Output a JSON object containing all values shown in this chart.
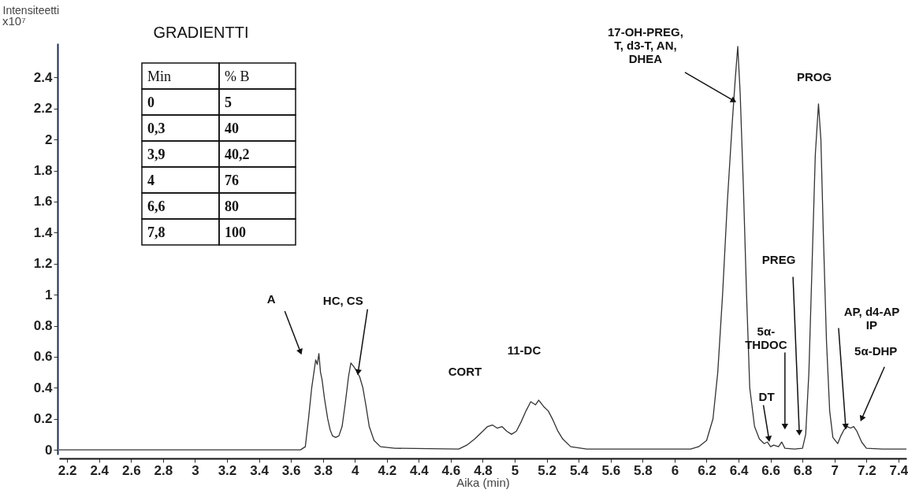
{
  "chart_data": {
    "type": "line",
    "xlabel": "Aika (min)",
    "ylabel": "Intensiteetti",
    "xlim": [
      2.15,
      7.45
    ],
    "ylim": [
      -0.03,
      2.62
    ],
    "xticks": [
      2.2,
      2.4,
      2.6,
      2.8,
      3,
      3.2,
      3.4,
      3.6,
      3.8,
      4,
      4.2,
      4.4,
      4.6,
      4.8,
      5,
      5.2,
      5.4,
      5.6,
      5.8,
      6,
      6.2,
      6.4,
      6.6,
      6.8,
      7,
      7.2,
      7.4
    ],
    "yticks": [
      0,
      0.2,
      0.4,
      0.6,
      0.8,
      1,
      1.2,
      1.4,
      1.6,
      1.8,
      2,
      2.2,
      2.4
    ],
    "series": [
      {
        "color": "#333333",
        "x": [
          2.15,
          3.66,
          3.69,
          3.71,
          3.73,
          3.755,
          3.765,
          3.775,
          3.785,
          3.795,
          3.81,
          3.83,
          3.845,
          3.86,
          3.88,
          3.9,
          3.92,
          3.94,
          3.96,
          3.975,
          3.99,
          4.01,
          4.03,
          4.05,
          4.07,
          4.09,
          4.12,
          4.16,
          4.25,
          4.65,
          4.7,
          4.75,
          4.8,
          4.83,
          4.86,
          4.89,
          4.92,
          4.95,
          4.98,
          5.01,
          5.04,
          5.07,
          5.1,
          5.13,
          5.15,
          5.18,
          5.21,
          5.24,
          5.27,
          5.3,
          5.35,
          5.45,
          6.1,
          6.15,
          6.2,
          6.24,
          6.27,
          6.3,
          6.33,
          6.36,
          6.38,
          6.395,
          6.41,
          6.43,
          6.45,
          6.47,
          6.5,
          6.53,
          6.56,
          6.58,
          6.6,
          6.62,
          6.65,
          6.67,
          6.69,
          6.75,
          6.8,
          6.82,
          6.84,
          6.86,
          6.88,
          6.9,
          6.915,
          6.93,
          6.95,
          6.97,
          6.99,
          7.02,
          7.04,
          7.06,
          7.08,
          7.1,
          7.12,
          7.14,
          7.17,
          7.2,
          7.3,
          7.45
        ],
        "values": [
          0,
          0,
          0.02,
          0.2,
          0.4,
          0.58,
          0.55,
          0.62,
          0.5,
          0.45,
          0.33,
          0.2,
          0.13,
          0.09,
          0.08,
          0.09,
          0.15,
          0.3,
          0.47,
          0.56,
          0.54,
          0.51,
          0.47,
          0.4,
          0.28,
          0.15,
          0.06,
          0.02,
          0.01,
          0.005,
          0.03,
          0.07,
          0.12,
          0.15,
          0.16,
          0.14,
          0.15,
          0.12,
          0.1,
          0.12,
          0.18,
          0.25,
          0.31,
          0.29,
          0.32,
          0.28,
          0.25,
          0.19,
          0.12,
          0.07,
          0.02,
          0.005,
          0.005,
          0.02,
          0.06,
          0.2,
          0.5,
          1.0,
          1.6,
          2.1,
          2.4,
          2.6,
          2.3,
          1.7,
          1.0,
          0.4,
          0.15,
          0.07,
          0.04,
          0.05,
          0.02,
          0.03,
          0.02,
          0.05,
          0.01,
          0.005,
          0.01,
          0.1,
          0.5,
          1.2,
          1.9,
          2.23,
          2.0,
          1.4,
          0.7,
          0.25,
          0.08,
          0.04,
          0.09,
          0.13,
          0.15,
          0.14,
          0.15,
          0.12,
          0.05,
          0.01,
          0.005,
          0.005
        ]
      }
    ],
    "annotations": [
      "x10⁷",
      "CORT",
      "11-DC",
      "PROG",
      "GRADIENTTI",
      "Min",
      "% B",
      "0",
      "5",
      "0,3",
      "40",
      "3,9",
      "40,2",
      "4",
      "76",
      "6,6",
      "80",
      "7,8",
      "100",
      {
        "text": "A",
        "x": 3.66,
        "y": 0.63
      },
      {
        "text": "HC, CS",
        "x": 4.02,
        "y": 0.5
      },
      {
        "text": "17-OH-PREG,\nT, d3-T, AN,\nDHEA",
        "x": 6.37,
        "y": 2.25
      },
      {
        "text": "DT",
        "x": 6.59,
        "y": 0.07
      },
      {
        "text": "5α-\nTHDOC",
        "x": 6.69,
        "y": 0.15
      },
      {
        "text": "PREG",
        "x": 6.78,
        "y": 0.11
      },
      {
        "text": "AP, d4-AP\nIP",
        "x": 7.07,
        "y": 0.15
      },
      {
        "text": "5α-DHP",
        "x": 7.17,
        "y": 0.2
      }
    ]
  }
}
